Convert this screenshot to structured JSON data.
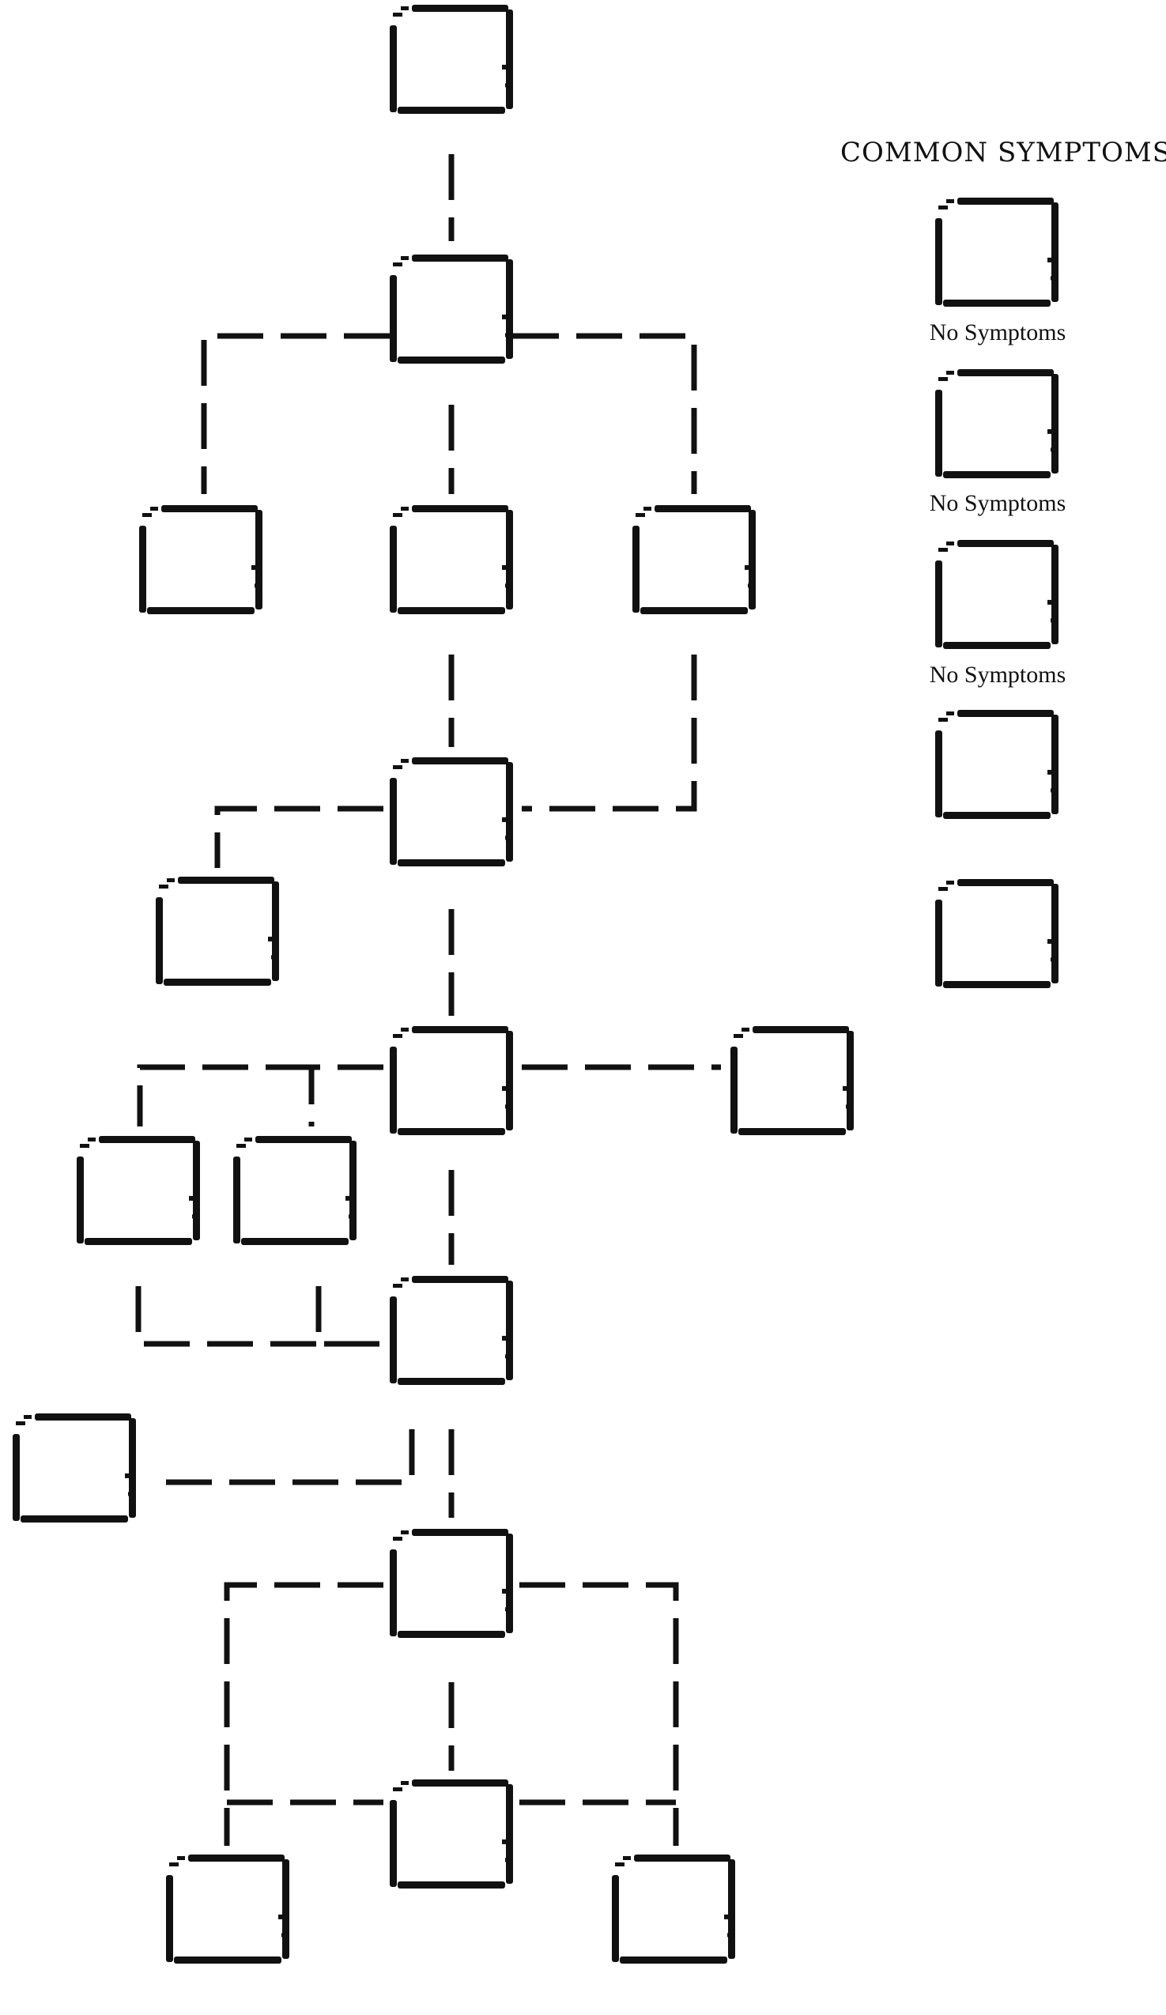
{
  "diagram": {
    "type": "pedigree-chart",
    "ink_color": "#111111",
    "background": "#ffffff",
    "node_count": 24
  },
  "legend": {
    "title": "COMMON SYMPTOMS",
    "items": [
      {
        "caption": "No Symptoms"
      },
      {
        "caption": "No Symptoms"
      },
      {
        "caption": "No Symptoms"
      },
      {
        "caption": ""
      },
      {
        "caption": ""
      }
    ]
  }
}
